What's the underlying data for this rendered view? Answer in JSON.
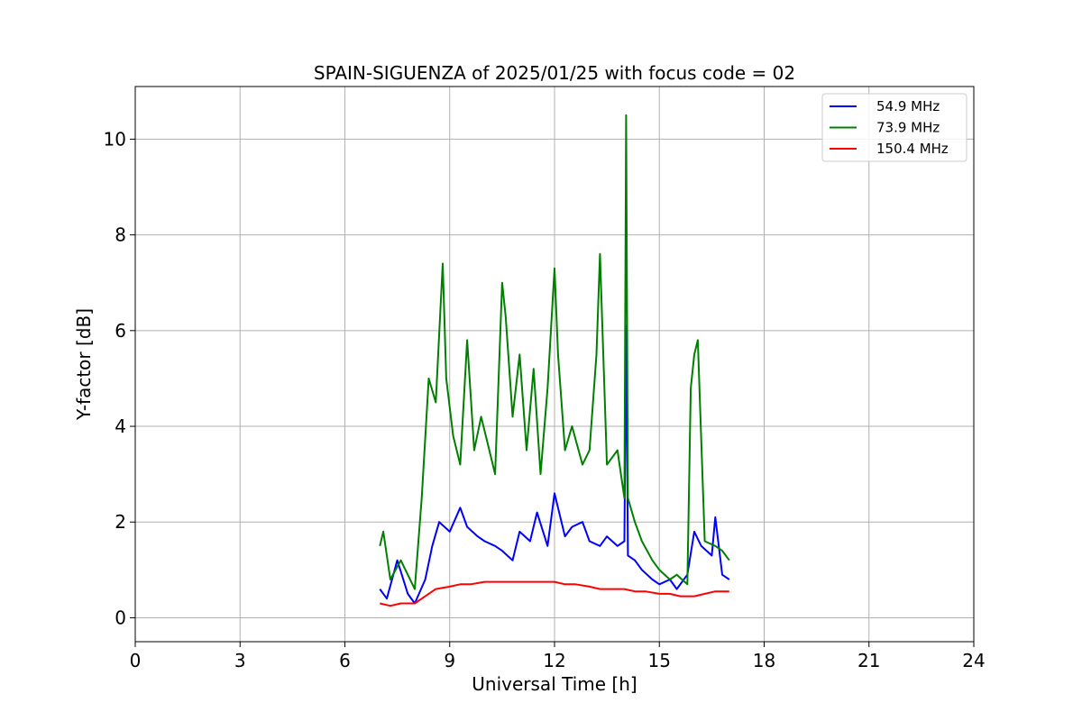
{
  "chart_data": {
    "type": "line",
    "title": "SPAIN-SIGUENZA of 2025/01/25 with focus code = 02",
    "xlabel": "Universal Time [h]",
    "ylabel": "Y-factor [dB]",
    "xlim": [
      0,
      24
    ],
    "ylim": [
      -0.5,
      11.1
    ],
    "xticks": [
      0,
      3,
      6,
      9,
      12,
      15,
      18,
      21,
      24
    ],
    "yticks": [
      0,
      2,
      4,
      6,
      8,
      10
    ],
    "grid": true,
    "legend_position": "top-right",
    "series": [
      {
        "name": "54.9 MHz",
        "color": "#0000ff",
        "x": [
          7.0,
          7.2,
          7.5,
          7.8,
          8.0,
          8.3,
          8.5,
          8.7,
          9.0,
          9.3,
          9.5,
          9.8,
          10.0,
          10.3,
          10.5,
          10.8,
          11.0,
          11.3,
          11.5,
          11.8,
          12.0,
          12.3,
          12.5,
          12.8,
          13.0,
          13.3,
          13.5,
          13.8,
          14.0,
          14.05,
          14.1,
          14.3,
          14.5,
          14.8,
          15.0,
          15.3,
          15.5,
          15.8,
          16.0,
          16.2,
          16.5,
          16.6,
          16.8,
          17.0
        ],
        "y": [
          0.6,
          0.4,
          1.2,
          0.5,
          0.3,
          0.8,
          1.5,
          2.0,
          1.8,
          2.3,
          1.9,
          1.7,
          1.6,
          1.5,
          1.4,
          1.2,
          1.8,
          1.6,
          2.2,
          1.5,
          2.6,
          1.7,
          1.9,
          2.0,
          1.6,
          1.5,
          1.7,
          1.5,
          1.6,
          6.1,
          1.3,
          1.2,
          1.0,
          0.8,
          0.7,
          0.8,
          0.6,
          0.9,
          1.8,
          1.5,
          1.3,
          2.1,
          0.9,
          0.8
        ]
      },
      {
        "name": "73.9 MHz",
        "color": "#008000",
        "x": [
          7.0,
          7.1,
          7.3,
          7.6,
          8.0,
          8.2,
          8.4,
          8.6,
          8.8,
          8.9,
          9.1,
          9.3,
          9.5,
          9.7,
          9.9,
          10.1,
          10.3,
          10.5,
          10.6,
          10.8,
          11.0,
          11.2,
          11.4,
          11.6,
          11.8,
          12.0,
          12.1,
          12.3,
          12.5,
          12.8,
          13.0,
          13.2,
          13.3,
          13.5,
          13.8,
          14.0,
          14.05,
          14.1,
          14.3,
          14.5,
          14.8,
          15.0,
          15.3,
          15.5,
          15.8,
          15.9,
          16.0,
          16.1,
          16.3,
          16.6,
          16.8,
          17.0
        ],
        "y": [
          1.5,
          1.8,
          0.8,
          1.2,
          0.6,
          2.5,
          5.0,
          4.5,
          7.4,
          5.0,
          3.8,
          3.2,
          5.8,
          3.5,
          4.2,
          3.6,
          3.0,
          7.0,
          6.3,
          4.2,
          5.5,
          3.5,
          5.2,
          3.0,
          4.8,
          7.3,
          5.5,
          3.5,
          4.0,
          3.2,
          3.5,
          5.5,
          7.6,
          3.2,
          3.5,
          2.5,
          10.5,
          2.5,
          2.0,
          1.6,
          1.2,
          1.0,
          0.8,
          0.9,
          0.7,
          4.8,
          5.5,
          5.8,
          1.6,
          1.5,
          1.4,
          1.2
        ]
      },
      {
        "name": "150.4 MHz",
        "color": "#ff0000",
        "x": [
          7.0,
          7.3,
          7.6,
          8.0,
          8.3,
          8.6,
          9.0,
          9.3,
          9.6,
          10.0,
          10.3,
          10.6,
          11.0,
          11.3,
          11.6,
          12.0,
          12.3,
          12.6,
          13.0,
          13.3,
          13.6,
          14.0,
          14.3,
          14.6,
          15.0,
          15.3,
          15.6,
          16.0,
          16.3,
          16.6,
          17.0
        ],
        "y": [
          0.3,
          0.25,
          0.3,
          0.3,
          0.45,
          0.6,
          0.65,
          0.7,
          0.7,
          0.75,
          0.75,
          0.75,
          0.75,
          0.75,
          0.75,
          0.75,
          0.7,
          0.7,
          0.65,
          0.6,
          0.6,
          0.6,
          0.55,
          0.55,
          0.5,
          0.5,
          0.45,
          0.45,
          0.5,
          0.55,
          0.55
        ]
      }
    ]
  }
}
